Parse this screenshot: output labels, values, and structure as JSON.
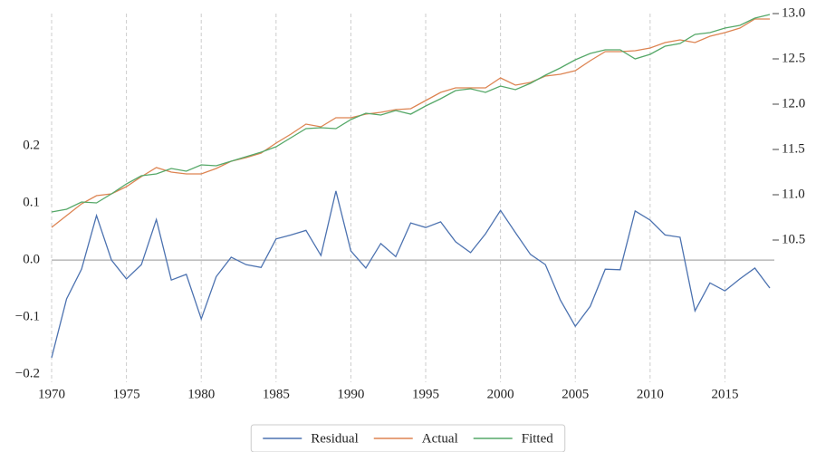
{
  "chart_data": {
    "type": "line",
    "x": [
      1970,
      1971,
      1972,
      1973,
      1974,
      1975,
      1976,
      1977,
      1978,
      1979,
      1980,
      1981,
      1982,
      1983,
      1984,
      1985,
      1986,
      1987,
      1988,
      1989,
      1990,
      1991,
      1992,
      1993,
      1994,
      1995,
      1996,
      1997,
      1998,
      1999,
      2000,
      2001,
      2002,
      2003,
      2004,
      2005,
      2006,
      2007,
      2008,
      2009,
      2010,
      2011,
      2012,
      2013,
      2014,
      2015,
      2016,
      2017,
      2018
    ],
    "series": [
      {
        "name": "Residual",
        "color": "#4c72b0",
        "axis": "y",
        "values": [
          -0.171,
          -0.068,
          -0.016,
          0.078,
          0.0,
          -0.033,
          -0.008,
          0.071,
          -0.035,
          -0.025,
          -0.103,
          -0.029,
          0.005,
          -0.008,
          -0.013,
          0.037,
          0.044,
          0.052,
          0.008,
          0.121,
          0.016,
          -0.014,
          0.029,
          0.006,
          0.065,
          0.057,
          0.067,
          0.032,
          0.013,
          0.046,
          0.087,
          0.048,
          0.01,
          -0.008,
          -0.07,
          -0.116,
          -0.081,
          -0.016,
          -0.017,
          0.086,
          0.07,
          0.044,
          0.04,
          -0.089,
          -0.04,
          -0.054,
          -0.033,
          -0.014,
          -0.049
        ]
      },
      {
        "name": "Actual",
        "color": "#dd8452",
        "axis": "y2",
        "values": [
          10.64,
          10.77,
          10.9,
          10.99,
          11.01,
          11.09,
          11.2,
          11.3,
          11.25,
          11.23,
          11.23,
          11.29,
          11.37,
          11.41,
          11.46,
          11.57,
          11.67,
          11.78,
          11.75,
          11.85,
          11.85,
          11.89,
          11.91,
          11.94,
          11.95,
          12.04,
          12.13,
          12.18,
          12.18,
          12.18,
          12.29,
          12.21,
          12.24,
          12.31,
          12.33,
          12.37,
          12.48,
          12.58,
          12.58,
          12.59,
          12.62,
          12.68,
          12.71,
          12.68,
          12.75,
          12.79,
          12.84,
          12.94,
          12.94
        ]
      },
      {
        "name": "Fitted",
        "color": "#55a868",
        "axis": "y2",
        "values": [
          10.81,
          10.84,
          10.92,
          10.91,
          11.01,
          11.12,
          11.21,
          11.23,
          11.29,
          11.26,
          11.33,
          11.32,
          11.37,
          11.42,
          11.47,
          11.53,
          11.63,
          11.73,
          11.74,
          11.73,
          11.83,
          11.9,
          11.88,
          11.93,
          11.89,
          11.98,
          12.06,
          12.15,
          12.17,
          12.13,
          12.2,
          12.16,
          12.23,
          12.32,
          12.4,
          12.49,
          12.56,
          12.6,
          12.6,
          12.5,
          12.55,
          12.64,
          12.67,
          12.77,
          12.79,
          12.84,
          12.87,
          12.95,
          12.99
        ]
      }
    ],
    "xlim": [
      1970,
      2018
    ],
    "xticks": [
      1970,
      1975,
      1980,
      1985,
      1990,
      1995,
      2000,
      2005,
      2010,
      2015
    ],
    "ylim": [
      -0.214,
      0.4317
    ],
    "yticks": [
      {
        "value": -0.2,
        "label": "−0.2"
      },
      {
        "value": -0.1,
        "label": "−0.1"
      },
      {
        "value": 0,
        "label": "0.0"
      },
      0.1,
      0.2
    ],
    "y2lim": [
      8.93,
      13.0
    ],
    "y2ticks": [
      10.5,
      {
        "value": 11,
        "label": "11.0"
      },
      11.5,
      {
        "value": 12,
        "label": "12.0"
      },
      12.5,
      {
        "value": 13,
        "label": "13.0"
      }
    ],
    "grid": "x",
    "legend": "bottom"
  }
}
